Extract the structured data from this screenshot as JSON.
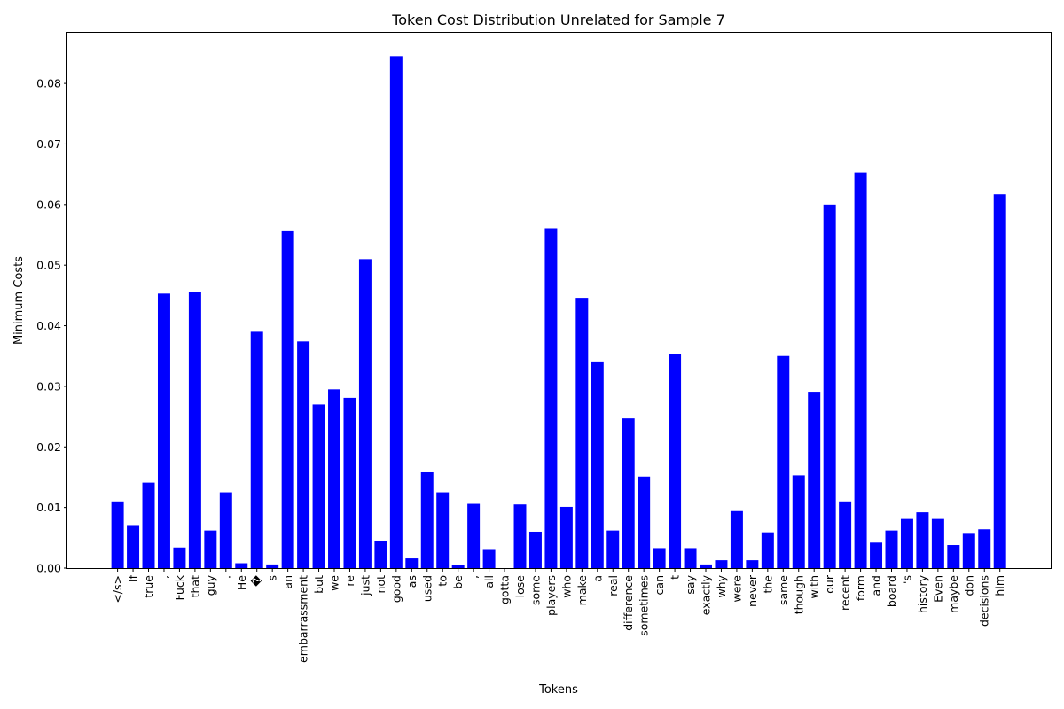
{
  "chart_data": {
    "type": "bar",
    "title": "Token Cost Distribution Unrelated for Sample 7",
    "xlabel": "Tokens",
    "ylabel": "Minimum Costs",
    "ylim": [
      0,
      0.0885
    ],
    "yticks": [
      0.0,
      0.01,
      0.02,
      0.03,
      0.04,
      0.05,
      0.06,
      0.07,
      0.08
    ],
    "ytick_labels": [
      "0.00",
      "0.01",
      "0.02",
      "0.03",
      "0.04",
      "0.05",
      "0.06",
      "0.07",
      "0.08"
    ],
    "bar_color": "#0000ff",
    "grid": false,
    "categories": [
      "</s>",
      "If",
      "true",
      ",",
      "Fuck",
      "that",
      "guy",
      ".",
      "He",
      "�",
      "s",
      "an",
      "embarrassment",
      "but",
      "we",
      "re",
      "just",
      "not",
      "good",
      "as",
      "used",
      "to",
      "be",
      ",",
      "all",
      "gotta",
      "lose",
      "some",
      "players",
      "who",
      "make",
      "a",
      "real",
      "difference",
      "sometimes",
      "can",
      "t",
      "say",
      "exactly",
      "why",
      "were",
      "never",
      "the",
      "same",
      "though",
      "with",
      "our",
      "recent",
      "form",
      "and",
      "board",
      "'s",
      "history",
      "Even",
      "maybe",
      "don",
      "decisions",
      "him"
    ],
    "values": [
      0.011,
      0.0071,
      0.0141,
      0.0453,
      0.0034,
      0.0455,
      0.0062,
      0.0125,
      0.0008,
      0.039,
      0.0006,
      0.0556,
      0.0374,
      0.027,
      0.0295,
      0.0281,
      0.051,
      0.0044,
      0.0845,
      0.0016,
      0.0158,
      0.0125,
      0.0005,
      0.0106,
      0.003,
      0.0,
      0.0105,
      0.006,
      0.0561,
      0.0101,
      0.0446,
      0.0341,
      0.0062,
      0.0247,
      0.0151,
      0.0033,
      0.0354,
      0.0033,
      0.0006,
      0.0013,
      0.0094,
      0.0013,
      0.0059,
      0.035,
      0.0153,
      0.0291,
      0.06,
      0.011,
      0.0653,
      0.0042,
      0.0062,
      0.0081,
      0.0092,
      0.0081,
      0.0038,
      0.0058,
      0.0064,
      0.0617
    ]
  }
}
